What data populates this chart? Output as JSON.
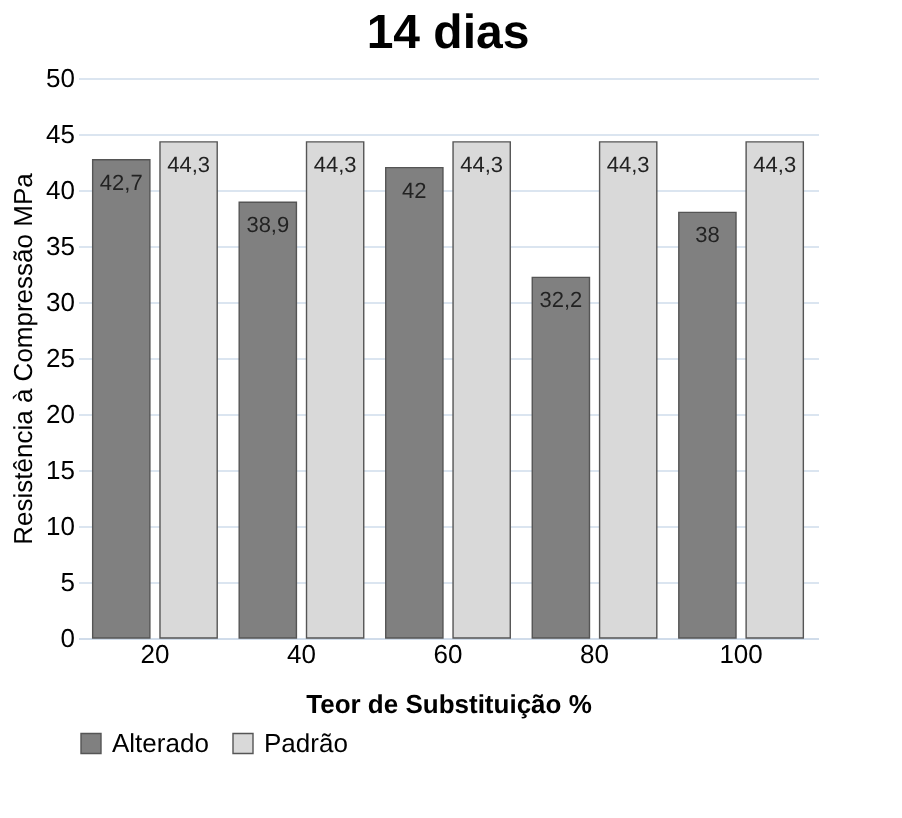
{
  "chart_data": {
    "type": "bar",
    "title": "14 dias",
    "xlabel": "Teor de Substituição %",
    "ylabel": "Resistência à Compressão MPa",
    "categories": [
      "20",
      "40",
      "60",
      "80",
      "100"
    ],
    "series": [
      {
        "name": "Alterado",
        "color": "#808080",
        "values": [
          42.7,
          38.9,
          42,
          32.2,
          38
        ],
        "value_labels": [
          "42,7",
          "38,9",
          "42",
          "32,2",
          "38"
        ]
      },
      {
        "name": "Padrão",
        "color": "#d9d9d9",
        "values": [
          44.3,
          44.3,
          44.3,
          44.3,
          44.3
        ],
        "value_labels": [
          "44,3",
          "44,3",
          "44,3",
          "44,3",
          "44,3"
        ]
      }
    ],
    "ylim": [
      0,
      50
    ],
    "yticks": [
      0,
      5,
      10,
      15,
      20,
      25,
      30,
      35,
      40,
      45,
      50
    ],
    "grid": "y",
    "legend": "bottom"
  }
}
